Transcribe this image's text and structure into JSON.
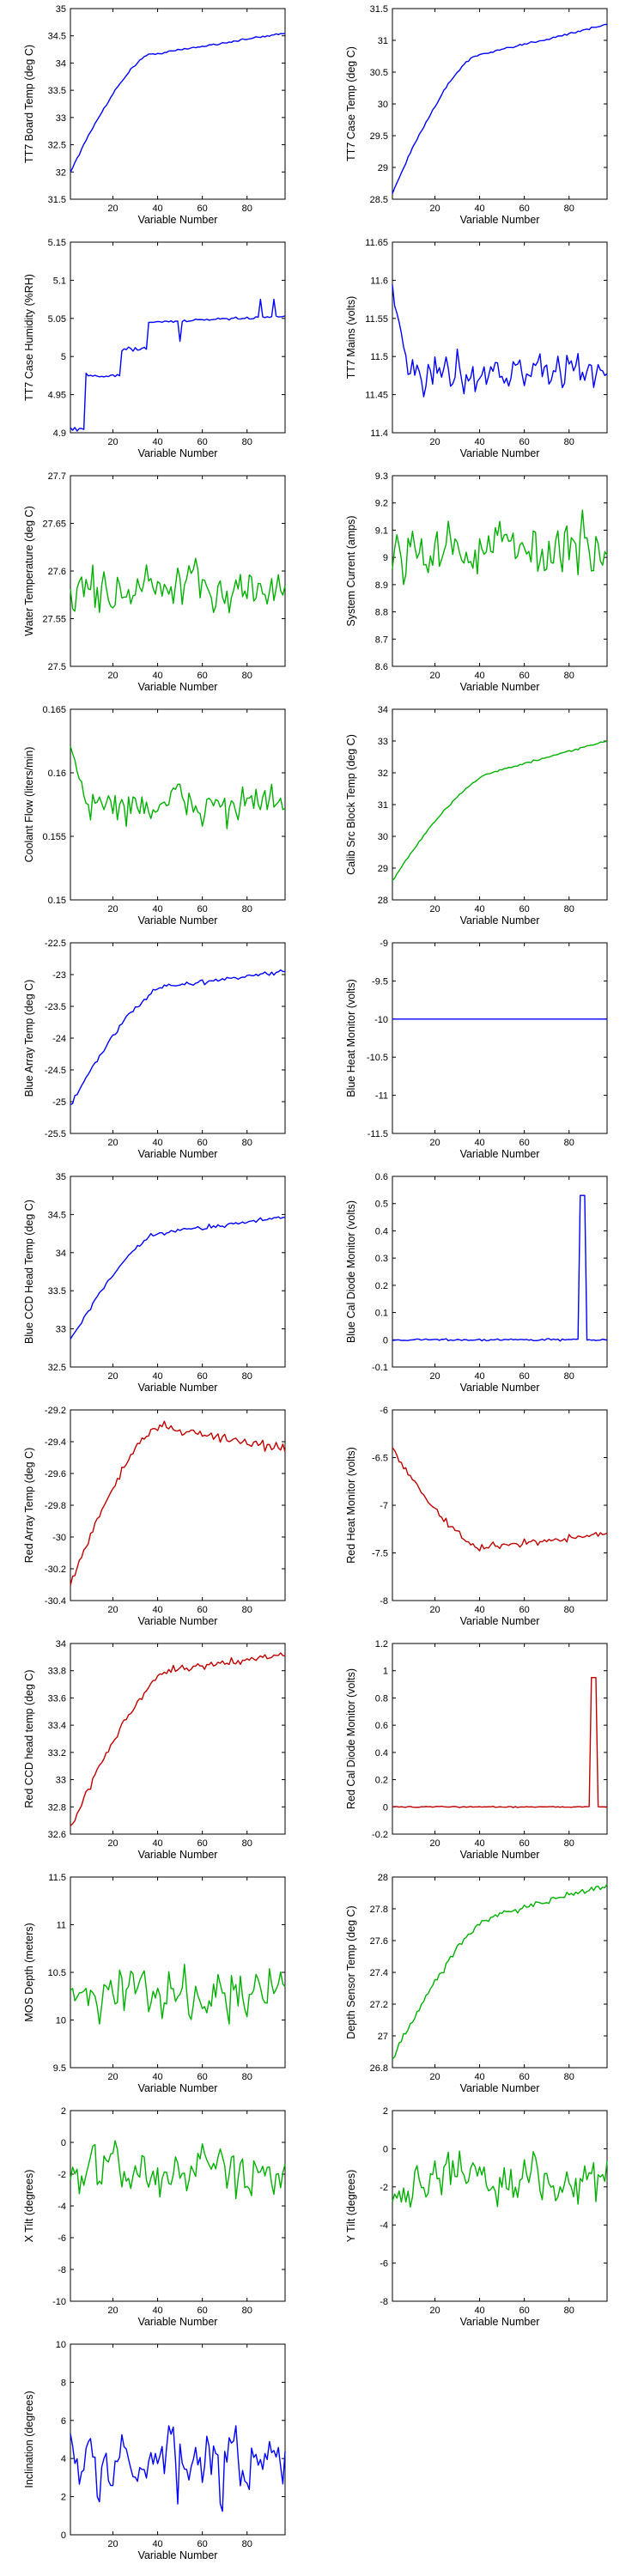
{
  "layout": {
    "columns": 2
  },
  "colors": {
    "blue": "#0000ff",
    "green": "#00b000",
    "red": "#c00000"
  },
  "chart_data": [
    {
      "id": "tt7-board-temp",
      "type": "line",
      "xlabel": "Variable Number",
      "ylabel": "TT7 Board Temp (deg C)",
      "xlim": [
        1,
        97
      ],
      "ylim": [
        31.5,
        35
      ],
      "xticks": [
        20,
        40,
        60,
        80
      ],
      "yticks": [
        31.5,
        32,
        32.5,
        33,
        33.5,
        34,
        34.5,
        35
      ],
      "color": "blue",
      "profile": "rise",
      "start": 32.0,
      "end": 34.55,
      "knee": 36,
      "kneeValue": 34.15,
      "noise": 0.02,
      "series": [
        {
          "values": []
        }
      ]
    },
    {
      "id": "tt7-case-temp",
      "type": "line",
      "xlabel": "Variable Number",
      "ylabel": "TT7 Case Temp (deg C)",
      "xlim": [
        1,
        97
      ],
      "ylim": [
        28.5,
        31.5
      ],
      "xticks": [
        20,
        40,
        60,
        80
      ],
      "yticks": [
        28.5,
        29,
        29.5,
        30,
        30.5,
        31,
        31.5
      ],
      "color": "blue",
      "profile": "rise",
      "start": 28.6,
      "end": 31.25,
      "knee": 38,
      "kneeValue": 30.75,
      "noise": 0.02,
      "series": [
        {
          "values": []
        }
      ]
    },
    {
      "id": "tt7-case-humidity",
      "type": "line",
      "xlabel": "Variable Number",
      "ylabel": "TT7 Case Humidity (%RH)",
      "xlim": [
        1,
        97
      ],
      "ylim": [
        4.9,
        5.15
      ],
      "xticks": [
        20,
        40,
        60,
        80
      ],
      "yticks": [
        4.9,
        4.95,
        5,
        5.05,
        5.1,
        5.15
      ],
      "color": "blue",
      "profile": "steps",
      "start": 4.91,
      "end": 5.052,
      "knee": 36,
      "kneeValue": 5.04,
      "noise": 0.004,
      "series": [
        {
          "values": []
        }
      ]
    },
    {
      "id": "tt7-mains",
      "type": "line",
      "xlabel": "Variable Number",
      "ylabel": "TT7 Mains  (volts)",
      "xlim": [
        1,
        97
      ],
      "ylim": [
        11.4,
        11.65
      ],
      "xticks": [
        20,
        40,
        60,
        80
      ],
      "yticks": [
        11.4,
        11.45,
        11.5,
        11.55,
        11.6,
        11.65
      ],
      "color": "blue",
      "profile": "noisy",
      "center": 11.48,
      "noise": 0.025,
      "start": 11.6,
      "series": [
        {
          "values": []
        }
      ]
    },
    {
      "id": "water-temperature",
      "type": "line",
      "xlabel": "Variable Number",
      "ylabel": "Water Temperature (deg C)",
      "xlim": [
        1,
        97
      ],
      "ylim": [
        27.5,
        27.7
      ],
      "xticks": [
        20,
        40,
        60,
        80
      ],
      "yticks": [
        27.5,
        27.55,
        27.6,
        27.65,
        27.7
      ],
      "color": "green",
      "profile": "noisy",
      "center": 27.58,
      "noise": 0.025,
      "series": [
        {
          "values": []
        }
      ]
    },
    {
      "id": "system-current",
      "type": "line",
      "xlabel": "Variable Number",
      "ylabel": "System Current (amps)",
      "xlim": [
        1,
        97
      ],
      "ylim": [
        8.6,
        9.3
      ],
      "xticks": [
        20,
        40,
        60,
        80
      ],
      "yticks": [
        8.6,
        8.7,
        8.8,
        8.9,
        9,
        9.1,
        9.2,
        9.3
      ],
      "color": "green",
      "profile": "noisy",
      "center": 9.03,
      "noise": 0.1,
      "series": [
        {
          "values": []
        }
      ]
    },
    {
      "id": "coolant-flow",
      "type": "line",
      "xlabel": "Variable Number",
      "ylabel": "Coolant Flow (liters/min)",
      "xlim": [
        1,
        97
      ],
      "ylim": [
        0.15,
        0.165
      ],
      "xticks": [
        20,
        40,
        60,
        80
      ],
      "yticks": [
        0.15,
        0.155,
        0.16,
        0.165
      ],
      "color": "green",
      "profile": "noisy",
      "center": 0.1575,
      "noise": 0.0015,
      "start": 0.163,
      "series": [
        {
          "values": []
        }
      ]
    },
    {
      "id": "calib-src-block-temp",
      "type": "line",
      "xlabel": "Variable Number",
      "ylabel": "Calib Src Block Temp (deg C)",
      "xlim": [
        1,
        97
      ],
      "ylim": [
        28,
        34
      ],
      "xticks": [
        20,
        40,
        60,
        80
      ],
      "yticks": [
        28,
        29,
        30,
        31,
        32,
        33,
        34
      ],
      "color": "green",
      "profile": "rise",
      "start": 28.6,
      "end": 33.0,
      "knee": 45,
      "kneeValue": 32.0,
      "noise": 0.03,
      "series": [
        {
          "values": []
        }
      ]
    },
    {
      "id": "blue-array-temp",
      "type": "line",
      "xlabel": "Variable Number",
      "ylabel": "Blue Array Temp (deg C)",
      "xlim": [
        1,
        97
      ],
      "ylim": [
        -25.5,
        -22.5
      ],
      "xticks": [
        20,
        40,
        60,
        80
      ],
      "yticks": [
        -25.5,
        -25,
        -24.5,
        -24,
        -23.5,
        -23,
        -22.5
      ],
      "color": "blue",
      "profile": "rise",
      "start": -25.05,
      "end": -22.95,
      "knee": 42,
      "kneeValue": -23.2,
      "noise": 0.04,
      "series": [
        {
          "values": []
        }
      ]
    },
    {
      "id": "blue-heat-monitor",
      "type": "line",
      "xlabel": "Variable Number",
      "ylabel": "Blue Heat Monitor (volts)",
      "xlim": [
        1,
        97
      ],
      "ylim": [
        -11.5,
        -9
      ],
      "xticks": [
        20,
        40,
        60,
        80
      ],
      "yticks": [
        -11.5,
        -11,
        -10.5,
        -10,
        -9.5,
        -9
      ],
      "color": "blue",
      "profile": "flat",
      "center": -10,
      "series": [
        {
          "values": []
        }
      ]
    },
    {
      "id": "blue-ccd-head-temp",
      "type": "line",
      "xlabel": "Variable Number",
      "ylabel": "Blue CCD Head Temp (deg C)",
      "xlim": [
        1,
        97
      ],
      "ylim": [
        32.5,
        35
      ],
      "xticks": [
        20,
        40,
        60,
        80
      ],
      "yticks": [
        32.5,
        33,
        33.5,
        34,
        34.5,
        35
      ],
      "color": "blue",
      "profile": "rise",
      "start": 32.85,
      "end": 34.47,
      "knee": 40,
      "kneeValue": 34.25,
      "noise": 0.03,
      "series": [
        {
          "values": []
        }
      ]
    },
    {
      "id": "blue-cal-diode-monitor",
      "type": "line",
      "xlabel": "Variable Number",
      "ylabel": "Blue Cal Diode Monitor (volts)",
      "xlim": [
        1,
        97
      ],
      "ylim": [
        -0.1,
        0.6
      ],
      "xticks": [
        20,
        40,
        60,
        80
      ],
      "yticks": [
        -0.1,
        0,
        0.1,
        0.2,
        0.3,
        0.4,
        0.5,
        0.6
      ],
      "color": "blue",
      "profile": "pulse",
      "center": 0.0,
      "pulseStart": 85,
      "pulseEnd": 87,
      "pulseValue": 0.53,
      "series": [
        {
          "values": []
        }
      ]
    },
    {
      "id": "red-array-temp",
      "type": "line",
      "xlabel": "Variable Number",
      "ylabel": "Red Array Temp (deg C)",
      "xlim": [
        1,
        97
      ],
      "ylim": [
        -30.4,
        -29.2
      ],
      "xticks": [
        20,
        40,
        60,
        80
      ],
      "yticks": [
        -30.4,
        -30.2,
        -30,
        -29.8,
        -29.6,
        -29.4,
        -29.2
      ],
      "color": "red",
      "profile": "rise",
      "start": -30.3,
      "end": -29.45,
      "knee": 40,
      "kneeValue": -29.3,
      "noise": 0.03,
      "series": [
        {
          "values": []
        }
      ]
    },
    {
      "id": "red-heat-monitor",
      "type": "line",
      "xlabel": "Variable Number",
      "ylabel": "Red Heat Monitor (volts)",
      "xlim": [
        1,
        97
      ],
      "ylim": [
        -8,
        -6
      ],
      "xticks": [
        20,
        40,
        60,
        80
      ],
      "yticks": [
        -8,
        -7.5,
        -7,
        -6.5,
        -6
      ],
      "color": "red",
      "profile": "fall",
      "start": -6.4,
      "end": -7.3,
      "knee": 40,
      "kneeValue": -7.45,
      "noise": 0.04,
      "series": [
        {
          "values": []
        }
      ]
    },
    {
      "id": "red-ccd-head-temp",
      "type": "line",
      "xlabel": "Variable Number",
      "ylabel": "Red CCD head temp (deg C)",
      "xlim": [
        1,
        97
      ],
      "ylim": [
        32.6,
        34
      ],
      "xticks": [
        20,
        40,
        60,
        80
      ],
      "yticks": [
        32.6,
        32.8,
        33,
        33.2,
        33.4,
        33.6,
        33.8,
        34
      ],
      "color": "red",
      "profile": "rise",
      "start": 32.65,
      "end": 33.92,
      "knee": 45,
      "kneeValue": 33.8,
      "noise": 0.025,
      "series": [
        {
          "values": []
        }
      ]
    },
    {
      "id": "red-cal-diode-monitor",
      "type": "line",
      "xlabel": "Variable Number",
      "ylabel": "Red Cal Diode Monitor (volts)",
      "xlim": [
        1,
        97
      ],
      "ylim": [
        -0.2,
        1.2
      ],
      "xticks": [
        20,
        40,
        60,
        80
      ],
      "yticks": [
        -0.2,
        0,
        0.2,
        0.4,
        0.6,
        0.8,
        1,
        1.2
      ],
      "color": "red",
      "profile": "pulse",
      "center": 0.0,
      "pulseStart": 90,
      "pulseEnd": 92,
      "pulseValue": 0.95,
      "series": [
        {
          "values": []
        }
      ]
    },
    {
      "id": "mos-depth",
      "type": "line",
      "xlabel": "Variable Number",
      "ylabel": "MOS Depth  (meters)",
      "xlim": [
        1,
        97
      ],
      "ylim": [
        9.5,
        11.5
      ],
      "xticks": [
        20,
        40,
        60,
        80
      ],
      "yticks": [
        9.5,
        10,
        10.5,
        11,
        11.5
      ],
      "color": "green",
      "profile": "noisy",
      "center": 10.3,
      "noise": 0.25,
      "series": [
        {
          "values": []
        }
      ]
    },
    {
      "id": "depth-sensor-temp",
      "type": "line",
      "xlabel": "Variable Number",
      "ylabel": "Depth Sensor Temp (deg C)",
      "xlim": [
        1,
        97
      ],
      "ylim": [
        26.8,
        28
      ],
      "xticks": [
        20,
        40,
        60,
        80
      ],
      "yticks": [
        26.8,
        27,
        27.2,
        27.4,
        27.6,
        27.8,
        28
      ],
      "color": "green",
      "profile": "rise",
      "start": 26.85,
      "end": 27.95,
      "knee": 45,
      "kneeValue": 27.75,
      "noise": 0.025,
      "series": [
        {
          "values": []
        }
      ]
    },
    {
      "id": "x-tilt",
      "type": "line",
      "xlabel": "Variable Number",
      "ylabel": "X Tilt  (degrees)",
      "xlim": [
        1,
        97
      ],
      "ylim": [
        -10,
        2
      ],
      "xticks": [
        20,
        40,
        60,
        80
      ],
      "yticks": [
        -10,
        -8,
        -6,
        -4,
        -2,
        0,
        2
      ],
      "color": "green",
      "profile": "noisy",
      "center": -1.8,
      "noise": 1.5,
      "series": [
        {
          "values": []
        }
      ]
    },
    {
      "id": "y-tilt",
      "type": "line",
      "xlabel": "Variable Number",
      "ylabel": "Y Tilt  (degrees)",
      "xlim": [
        1,
        97
      ],
      "ylim": [
        -8,
        2
      ],
      "xticks": [
        20,
        40,
        60,
        80
      ],
      "yticks": [
        -8,
        -6,
        -4,
        -2,
        0,
        2
      ],
      "color": "green",
      "profile": "noisy",
      "center": -1.6,
      "noise": 1.3,
      "series": [
        {
          "values": []
        }
      ]
    },
    {
      "id": "inclination",
      "type": "line",
      "xlabel": "Variable Number",
      "ylabel": "Inclination  (degrees)",
      "xlim": [
        1,
        97
      ],
      "ylim": [
        0,
        10
      ],
      "xticks": [
        20,
        40,
        60,
        80
      ],
      "yticks": [
        0,
        2,
        4,
        6,
        8,
        10
      ],
      "color": "blue",
      "profile": "noisy",
      "center": 3.6,
      "noise": 1.7,
      "series": [
        {
          "values": []
        }
      ]
    }
  ]
}
